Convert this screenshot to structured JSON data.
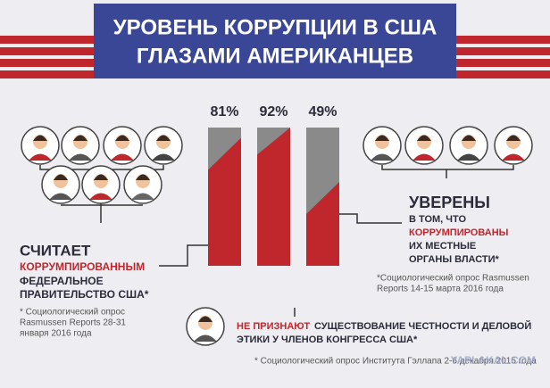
{
  "chart_data": {
    "type": "bar",
    "title": [
      "УРОВЕНЬ КОРРУПЦИИ В США",
      "ГЛАЗАМИ АМЕРИКАНЦЕВ"
    ],
    "categories": [
      null,
      null,
      null
    ],
    "values": [
      81,
      92,
      49
    ],
    "value_labels": [
      "81%",
      "92%",
      "49%"
    ],
    "ylim": [
      0,
      100
    ],
    "colors": {
      "filled": "#c0272d",
      "rest": "#8a8a8a"
    },
    "annotations": {
      "left": {
        "lines": [
          "СЧИТАЕТ",
          "КОРРУМПИРОВАННЫМ",
          "ФЕДЕРАЛЬНОЕ",
          "ПРАВИТЕЛЬСТВО США*"
        ],
        "note": [
          "* Социологический опрос",
          "Rasmussen Reports 28-31",
          "января 2016 года"
        ]
      },
      "right": {
        "lines": [
          "УВЕРЕНЫ",
          "В ТОМ, ЧТО",
          "КОРРУМПИРОВАНЫ",
          "ИХ МЕСТНЫЕ",
          "ОРГАНЫ ВЛАСТИ*"
        ],
        "note": [
          "*Социологический опрос Rasmussen",
          "Reports 14-15 марта 2016 года"
        ]
      },
      "bottom": {
        "highlight": "НЕ ПРИЗНАЮТ",
        "lines": [
          "СУЩЕСТВОВАНИЕ ЧЕСТНОСТИ И ДЕЛОВОЙ",
          "ЭТИКИ У ЧЛЕНОВ КОНГРЕССА США*"
        ],
        "note": "* Социологический опрос Института Гэллапа 2-6 декабря 2015 года"
      }
    },
    "watermark": "YAPLAKAL.COM"
  }
}
